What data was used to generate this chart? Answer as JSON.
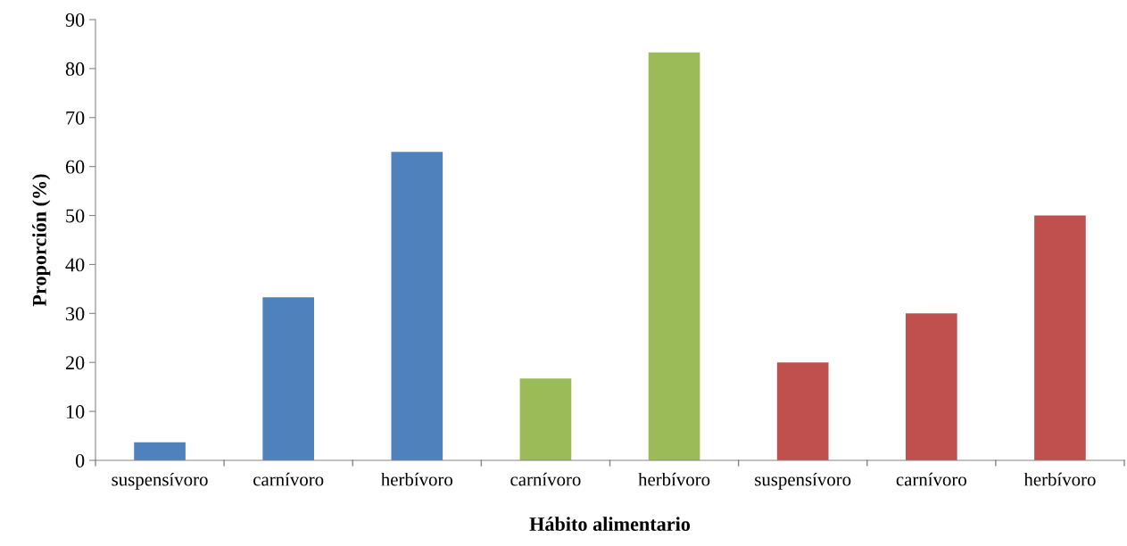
{
  "chart_data": {
    "type": "bar",
    "xlabel": "Hábito alimentario",
    "ylabel": "Proporción (%)",
    "categories": [
      "suspensívoro",
      "carnívoro",
      "herbívoro",
      "carnívoro",
      "herbívoro",
      "suspensívoro",
      "carnívoro",
      "herbívoro"
    ],
    "values": [
      3.7,
      33.3,
      63,
      16.7,
      83.3,
      20,
      30,
      50
    ],
    "colors": [
      "#4f81bd",
      "#4f81bd",
      "#4f81bd",
      "#9bbb59",
      "#9bbb59",
      "#c0504d",
      "#c0504d",
      "#c0504d"
    ],
    "ylim": [
      0,
      90
    ],
    "yticks": [
      0,
      10,
      20,
      30,
      40,
      50,
      60,
      70,
      80,
      90
    ],
    "grid": false
  }
}
